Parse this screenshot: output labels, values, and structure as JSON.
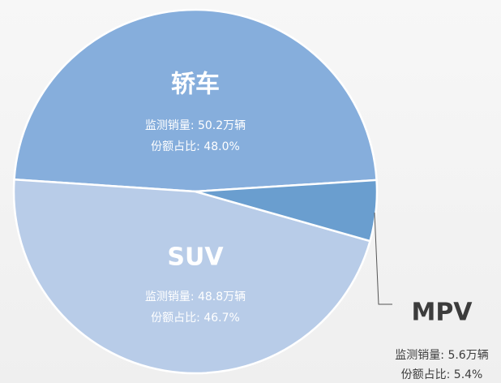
{
  "chart_data": {
    "type": "pie",
    "categories": [
      "轿车",
      "SUV",
      "MPV"
    ],
    "values": [
      48.0,
      46.7,
      5.4
    ],
    "value_labels": [
      "份额占比: 48.0%",
      "份额占比: 46.7%",
      "份额占比: 5.4%"
    ],
    "sales": [
      50.2,
      48.8,
      5.6
    ],
    "sales_labels": [
      "监测销量: 50.2万辆",
      "监测销量: 48.8万辆",
      "监测销量: 5.6万辆"
    ],
    "colors": [
      "#86aedc",
      "#b8cce8",
      "#6a9ecf"
    ]
  }
}
